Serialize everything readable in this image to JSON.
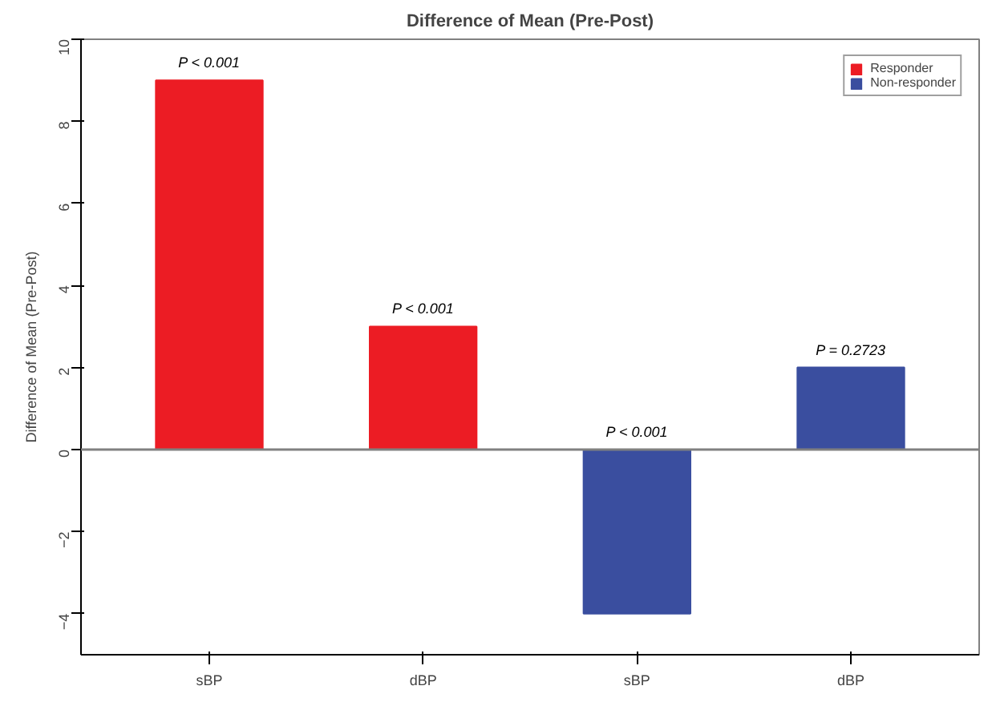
{
  "chart_data": {
    "type": "bar",
    "title": "Difference of Mean (Pre-Post)",
    "ylabel": "Difference of Mean (Pre-Post)",
    "categories": [
      "sBP",
      "dBP",
      "sBP",
      "dBP"
    ],
    "series": [
      {
        "name": "Responder",
        "color": "#ec1c24",
        "values": [
          9,
          3,
          null,
          null
        ]
      },
      {
        "name": "Non-responder",
        "color": "#3a4e9f",
        "values": [
          null,
          null,
          -4,
          2
        ]
      }
    ],
    "annotations": [
      "P < 0.001",
      "P < 0.001",
      "P < 0.001",
      "P = 0.2723"
    ],
    "ylim": [
      -5,
      10
    ],
    "yticks": [
      -4,
      -2,
      0,
      2,
      4,
      6,
      8,
      10
    ],
    "ref_lines": [
      {
        "axis": "y",
        "value": 0,
        "color": "#808080"
      }
    ],
    "legend": "top right",
    "grid": false
  }
}
